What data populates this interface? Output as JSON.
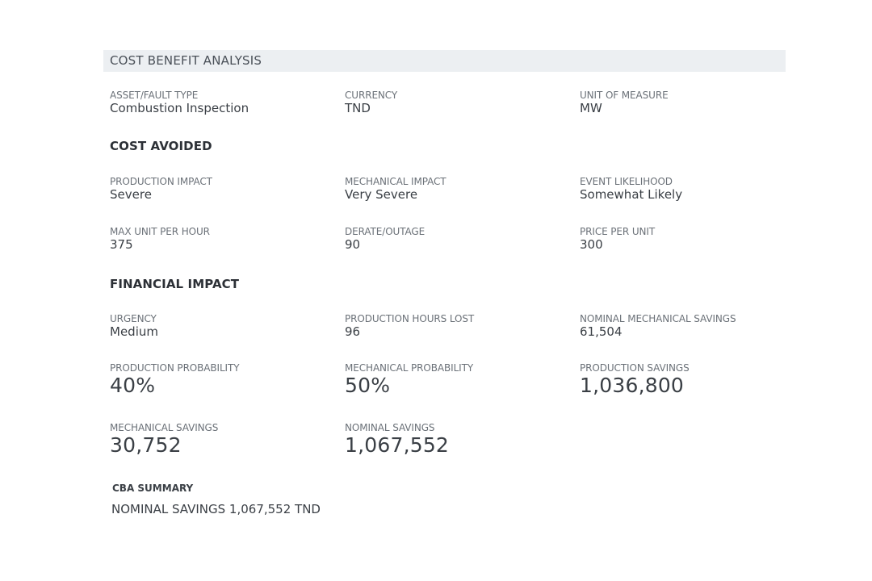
{
  "header": {
    "title": "COST BENEFIT ANALYSIS"
  },
  "general": {
    "asset_label": "ASSET/FAULT TYPE",
    "asset_value": "Combustion Inspection",
    "currency_label": "CURRENCY",
    "currency_value": "TND",
    "uom_label": "UNIT OF MEASURE",
    "uom_value": "MW"
  },
  "cost_avoided": {
    "title": "COST AVOIDED",
    "production_impact_label": "PRODUCTION IMPACT",
    "production_impact_value": "Severe",
    "mechanical_impact_label": "MECHANICAL IMPACT",
    "mechanical_impact_value": "Very Severe",
    "event_likelihood_label": "EVENT LIKELIHOOD",
    "event_likelihood_value": "Somewhat Likely",
    "max_unit_label": "MAX UNIT PER HOUR",
    "max_unit_value": "375",
    "derate_label": "DERATE/OUTAGE",
    "derate_value": "90",
    "price_label": "PRICE PER UNIT",
    "price_value": "300"
  },
  "financial_impact": {
    "title": "FINANCIAL IMPACT",
    "urgency_label": "URGENCY",
    "urgency_value": "Medium",
    "hours_lost_label": "PRODUCTION HOURS LOST",
    "hours_lost_value": "96",
    "nominal_mech_label": "NOMINAL MECHANICAL SAVINGS",
    "nominal_mech_value": "61,504",
    "prod_prob_label": "PRODUCTION PROBABILITY",
    "prod_prob_value": "40%",
    "mech_prob_label": "MECHANICAL PROBABILITY",
    "mech_prob_value": "50%",
    "prod_savings_label": "PRODUCTION SAVINGS",
    "prod_savings_value": "1,036,800",
    "mech_savings_label": "MECHANICAL SAVINGS",
    "mech_savings_value": "30,752",
    "nominal_savings_label": "NOMINAL SAVINGS",
    "nominal_savings_value": "1,067,552"
  },
  "summary": {
    "title": "CBA SUMMARY",
    "text": "NOMINAL SAVINGS 1,067,552 TND"
  }
}
